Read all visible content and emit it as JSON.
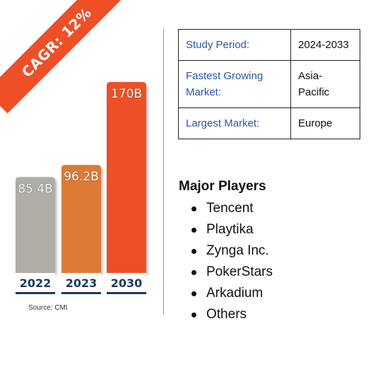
{
  "badge": {
    "text": "CAGR: 12%"
  },
  "source": "Source: CMI",
  "colors": {
    "accent": "#ee4f27",
    "divider": "#4bb8b0",
    "key_text": "#2e56a8",
    "label_text": "#1c3a5e"
  },
  "info_table": [
    {
      "key": "Study Period:",
      "value": "2024-2033"
    },
    {
      "key": "Fastest Growing Market:",
      "value": "Asia-Pacific"
    },
    {
      "key": "Largest Market:",
      "value": "Europe"
    }
  ],
  "players": {
    "title": "Major Players",
    "items": [
      "Tencent",
      "Playtika",
      "Zynga Inc.",
      "PokerStars",
      "Arkadium",
      "Others"
    ]
  },
  "chart_data": {
    "type": "bar",
    "categories": [
      "2022",
      "2023",
      "2030"
    ],
    "values": [
      85.4,
      96.2,
      170
    ],
    "value_labels": [
      "85.4B",
      "96.2B",
      "170B"
    ],
    "bar_colors": [
      "#b0aca6",
      "#dd7a35",
      "#ee4f27"
    ],
    "title": "",
    "xlabel": "",
    "ylabel": "",
    "ylim": [
      0,
      170
    ],
    "grid": false,
    "legend": "none"
  }
}
